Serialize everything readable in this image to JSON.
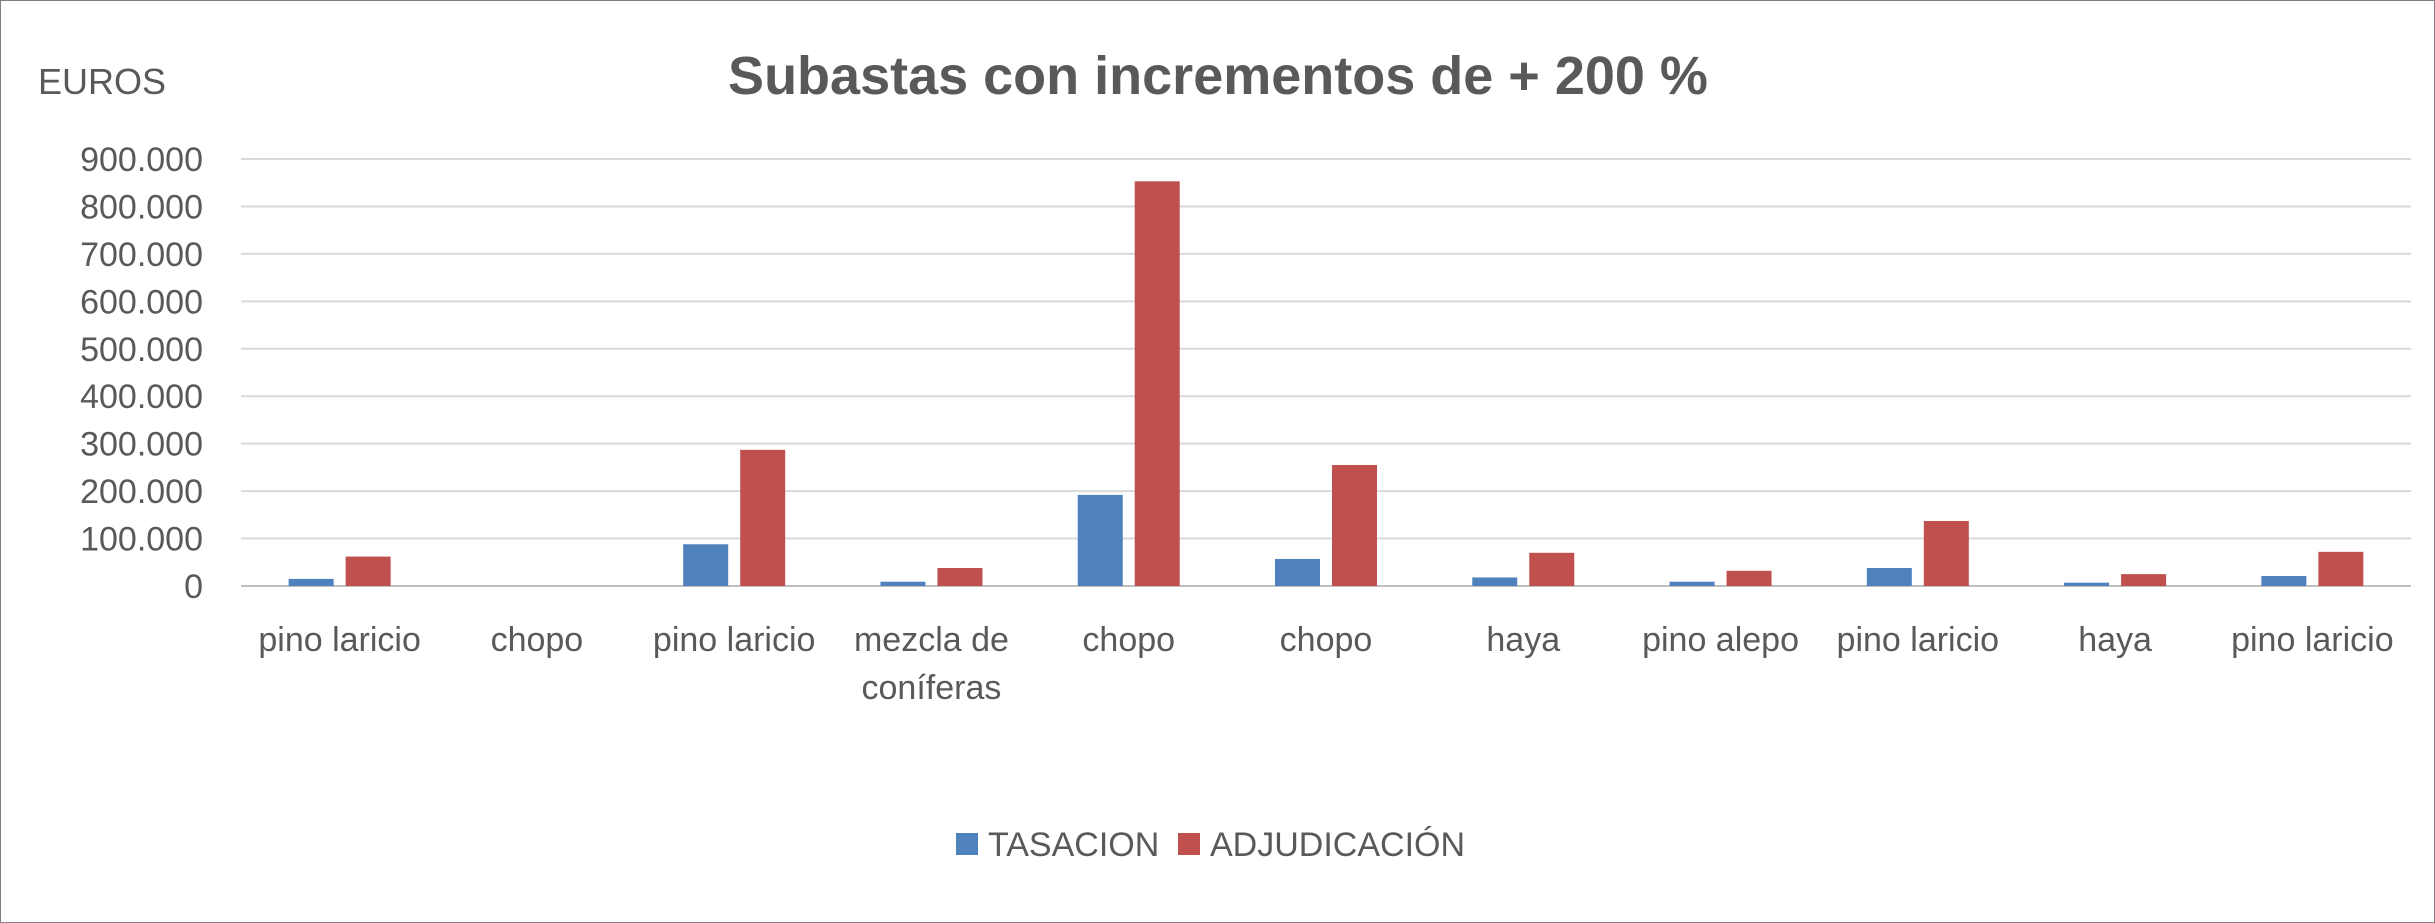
{
  "chart_data": {
    "type": "bar",
    "title": "Subastas con incrementos de + 200 %",
    "ylabel": "EUROS",
    "xlabel": "",
    "ylim": [
      0,
      900000
    ],
    "y_ticks": [
      0,
      100000,
      200000,
      300000,
      400000,
      500000,
      600000,
      700000,
      800000,
      900000
    ],
    "y_tick_labels": [
      "0",
      "100.000",
      "200.000",
      "300.000",
      "400.000",
      "500.000",
      "600.000",
      "700.000",
      "800.000",
      "900.000"
    ],
    "grid": true,
    "legend_position": "bottom",
    "categories": [
      [
        "pino laricio"
      ],
      [
        "chopo"
      ],
      [
        "pino laricio"
      ],
      [
        "mezcla de",
        "coníferas"
      ],
      [
        "chopo"
      ],
      [
        "chopo"
      ],
      [
        "haya"
      ],
      [
        "pino alepo"
      ],
      [
        "pino laricio"
      ],
      [
        "haya"
      ],
      [
        "pino laricio"
      ]
    ],
    "series": [
      {
        "name": "TASACION",
        "color": "#4f81bd",
        "values": [
          15000,
          0,
          88000,
          9000,
          192000,
          57000,
          18000,
          9000,
          38000,
          7000,
          21000
        ]
      },
      {
        "name": "ADJUDICACIÓN",
        "color": "#c0504d",
        "values": [
          62000,
          0,
          287000,
          38000,
          853000,
          255000,
          70000,
          32000,
          137000,
          25000,
          72000
        ]
      }
    ]
  }
}
